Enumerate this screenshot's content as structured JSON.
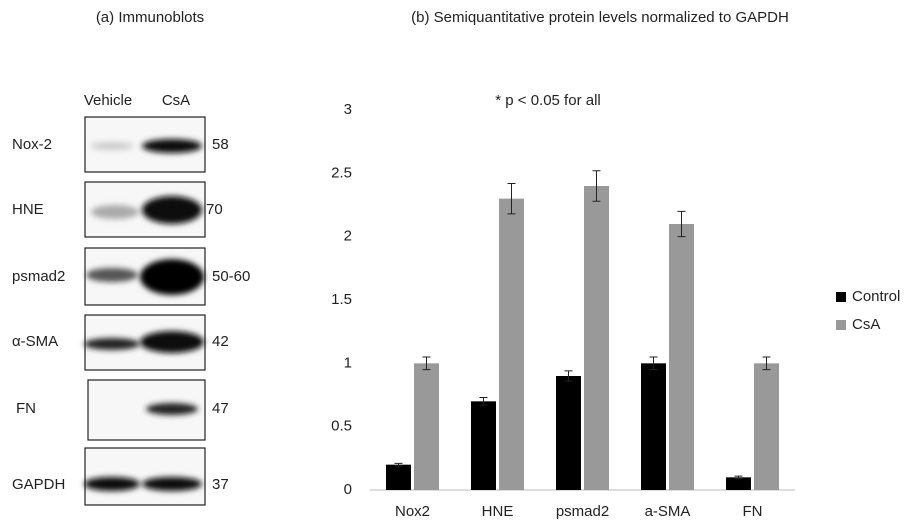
{
  "blots": {
    "title": "(a) Immunoblots",
    "columns": [
      "Vehicle",
      "CsA"
    ],
    "rows": [
      {
        "label": "Nox-2",
        "mw": "58"
      },
      {
        "label": "HNE",
        "mw": "70"
      },
      {
        "label": "psmad2",
        "mw": "50-60"
      },
      {
        "label": "α-SMA",
        "mw": "42"
      },
      {
        "label": "FN",
        "mw": "47"
      },
      {
        "label": "GAPDH",
        "mw": "37"
      }
    ]
  },
  "chart_data": {
    "type": "bar",
    "title": "(b) Semiquantitative protein levels normalized to GAPDH",
    "annotation": "* p < 0.05 for all",
    "categories": [
      "Nox2",
      "HNE",
      "psmad2",
      "a-SMA",
      "FN"
    ],
    "series": [
      {
        "name": "Control",
        "color": "#000000",
        "values": [
          0.2,
          0.7,
          0.9,
          1.0,
          0.1
        ],
        "errors": [
          0.01,
          0.03,
          0.04,
          0.05,
          0.01
        ]
      },
      {
        "name": "CsA",
        "color": "#999999",
        "values": [
          1.0,
          2.3,
          2.4,
          2.1,
          1.0
        ],
        "errors": [
          0.05,
          0.12,
          0.12,
          0.1,
          0.05
        ]
      }
    ],
    "ylim": [
      0,
      3
    ],
    "yticks": [
      0,
      0.5,
      1,
      1.5,
      2,
      2.5,
      3
    ],
    "grid": false,
    "legend": "right"
  }
}
